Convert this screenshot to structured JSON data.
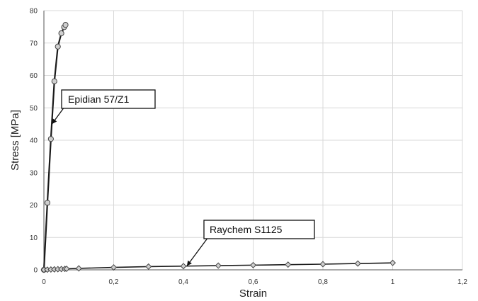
{
  "chart_data": {
    "type": "line",
    "title": "",
    "xlabel": "Strain",
    "ylabel": "Stress [MPa]",
    "xlim": [
      0,
      1.2
    ],
    "ylim": [
      0,
      80
    ],
    "x_ticks": [
      "0",
      "0,2",
      "0,4",
      "0,6",
      "0,8",
      "1",
      "1,2"
    ],
    "y_ticks": [
      "0",
      "10",
      "20",
      "30",
      "40",
      "50",
      "60",
      "70",
      "80"
    ],
    "grid": true,
    "series": [
      {
        "name": "Epidian 57/Z1",
        "marker": "circle",
        "color": "#1a1a1a",
        "marker_fill": "#cfcfcf",
        "x": [
          0.0,
          0.01,
          0.02,
          0.03,
          0.04,
          0.05,
          0.058,
          0.062
        ],
        "y": [
          0,
          20.7,
          40.4,
          58.2,
          68.9,
          73.0,
          74.9,
          75.6
        ]
      },
      {
        "name": "Raychem S1125",
        "marker": "diamond",
        "color": "#6e6e6e",
        "marker_fill": "#cfcfcf",
        "x": [
          0.0,
          0.01,
          0.02,
          0.03,
          0.04,
          0.05,
          0.06,
          0.065,
          0.1,
          0.2,
          0.3,
          0.4,
          0.5,
          0.6,
          0.7,
          0.8,
          0.9,
          1.0
        ],
        "y": [
          0,
          0.05,
          0.1,
          0.15,
          0.2,
          0.25,
          0.3,
          0.33,
          0.45,
          0.75,
          1.0,
          1.15,
          1.3,
          1.45,
          1.6,
          1.75,
          1.95,
          2.15
        ]
      }
    ],
    "annotations": [
      {
        "text": "Epidian 57/Z1",
        "series": 0,
        "point_x": 0.023,
        "point_y": 45
      },
      {
        "text": "Raychem S1125",
        "series": 1,
        "point_x": 0.41,
        "point_y": 1.2
      }
    ]
  }
}
